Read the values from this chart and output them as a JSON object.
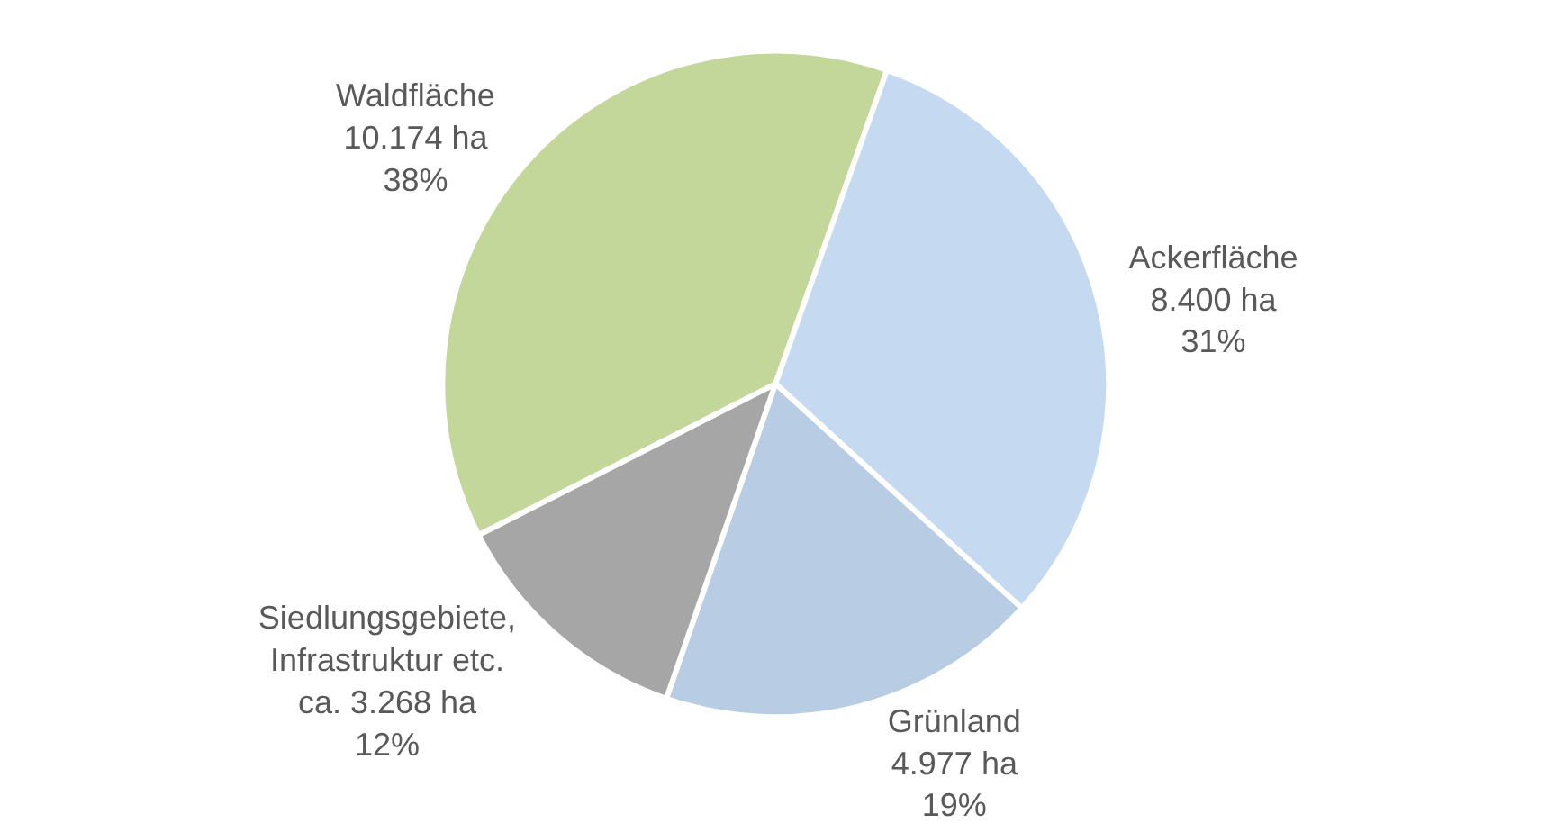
{
  "chart_data": {
    "type": "pie",
    "categories": [
      "Waldfläche",
      "Ackerfläche",
      "Grünland",
      "Siedlungsgebiete, Infrastruktur etc."
    ],
    "values": [
      10174,
      8400,
      4977,
      3268
    ],
    "value_labels": [
      "10.174 ha\n38%",
      "8.400 ha\n31%",
      "4.977 ha\n19%",
      "ca. 3.268 ha\n12%"
    ],
    "colors": [
      "#c4d79b",
      "#c5d9f1",
      "#b8cce4",
      "#a6a6a6"
    ],
    "legend": false
  }
}
